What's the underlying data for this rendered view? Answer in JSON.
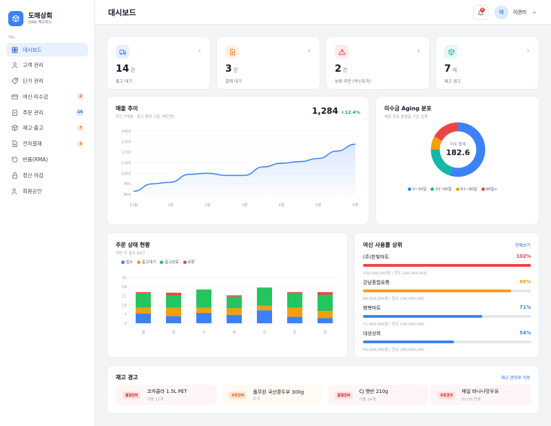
{
  "brand": {
    "name": "도매상회",
    "subtitle": "OMS 백오피스"
  },
  "sidebar": {
    "caption": "메뉴",
    "items": [
      {
        "label": "대시보드",
        "icon": "grid-icon",
        "active": true,
        "badge": ""
      },
      {
        "label": "고객 관리",
        "icon": "user-icon",
        "badge": ""
      },
      {
        "label": "단가 관리",
        "icon": "tag-icon",
        "badge": ""
      },
      {
        "label": "여신·미수금",
        "icon": "card-icon",
        "badge": "2",
        "badge_color": "red"
      },
      {
        "label": "주문 관리",
        "icon": "clipboard-icon",
        "badge": "14",
        "badge_color": "blue"
      },
      {
        "label": "재고·출고",
        "icon": "box-icon",
        "badge": "7",
        "badge_color": "orange"
      },
      {
        "label": "전자결재",
        "icon": "document-icon",
        "badge": "3",
        "badge_color": "orange"
      },
      {
        "label": "반품(RMA)",
        "icon": "return-icon",
        "badge": ""
      },
      {
        "label": "정산 마감",
        "icon": "lock-icon",
        "badge": ""
      },
      {
        "label": "회원승인",
        "icon": "user-check-icon",
        "badge": ""
      }
    ]
  },
  "header": {
    "title": "대시보드",
    "notification_count": "4",
    "avatar_initial": "이",
    "user_name": "이관리"
  },
  "kpis": [
    {
      "value": "14",
      "unit": "건",
      "label": "출고 대기",
      "color": "#3b82f6",
      "bg": "#e8f1fd",
      "icon": "truck-icon"
    },
    {
      "value": "3",
      "unit": "건",
      "label": "결재 대기",
      "color": "#f97316",
      "bg": "#fff1e6",
      "icon": "document-icon"
    },
    {
      "value": "2",
      "unit": "건",
      "label": "보류 주문 (여신초과)",
      "color": "#ef4444",
      "bg": "#fdecec",
      "icon": "warning-icon"
    },
    {
      "value": "7",
      "unit": "개",
      "label": "재고 경고",
      "color": "#14b8a6",
      "bg": "#e6f7f5",
      "icon": "box-icon"
    }
  ],
  "sales": {
    "title": "매출 추이",
    "subtitle": "최근 7개월 · 출고 확정 기준 (백만원)",
    "value": "1,284",
    "change": "+12.4%"
  },
  "aging": {
    "title": "미수금 Aging 분포",
    "subtitle": "채권 전표 발생일 기준 집계",
    "center_label": "미수 합계",
    "center_value": "182.6"
  },
  "orders": {
    "title": "주문 상태 현황",
    "subtitle": "이번 주 접수 84건"
  },
  "credit": {
    "title": "여신 사용률 상위",
    "link": "전체보기",
    "rows": [
      {
        "name": "(주)한빛마트",
        "pct": "102%",
        "fill": 1.0,
        "color": "#ef4444",
        "desc": "102,000,000원 / 한도 100,000,000"
      },
      {
        "name": "강남종합유통",
        "pct": "88%",
        "fill": 0.88,
        "color": "#f59e0b",
        "desc": "88,000,000원 / 한도 100,000,000"
      },
      {
        "name": "행복마트",
        "pct": "71%",
        "fill": 0.71,
        "color": "#3b82f6",
        "desc": "71,000,000원 / 한도 100,000,000"
      },
      {
        "name": "대성상회",
        "pct": "54%",
        "fill": 0.54,
        "color": "#3b82f6",
        "desc": "54,000,000원 / 한도 100,000,000"
      }
    ]
  },
  "stock": {
    "title": "재고 경고",
    "link": "재고 관리로 이동",
    "items": [
      {
        "tag": "품절임박",
        "name": "코카콜라 1.5L PET",
        "desc": "가용 12개",
        "tag_bg": "#fde2e2",
        "tag_color": "#dc2626",
        "bg": "#fef6f6"
      },
      {
        "tag": "유통임박",
        "name": "풀무원 국산콩두부 300g",
        "desc": "D-3",
        "tag_bg": "#fde9d3",
        "tag_color": "#ea580c",
        "bg": "#fffaf3"
      },
      {
        "tag": "품절임박",
        "name": "CJ 햇반 210g",
        "desc": "가용 24개",
        "tag_bg": "#fde2e2",
        "tag_color": "#dc2626",
        "bg": "#fef6f6"
      },
      {
        "tag": "유통경과",
        "name": "매일 바나나맛우유",
        "desc": "07.05 만료",
        "tag_bg": "#fde2e2",
        "tag_color": "#dc2626",
        "bg": "#fef6f6"
      }
    ]
  },
  "chart_data": [
    {
      "type": "area",
      "title": "매출 추이",
      "categories": [
        "12월",
        "1월",
        "2월",
        "3월",
        "4월",
        "5월",
        "6월"
      ],
      "x": [
        0,
        0.5,
        1,
        1.5,
        2,
        2.5,
        3,
        3.5,
        4,
        4.5,
        5,
        5.5,
        6
      ],
      "y": [
        830,
        900,
        915,
        990,
        1000,
        980,
        980,
        1060,
        1095,
        1110,
        1140,
        1210,
        1275
      ],
      "ylim": [
        800,
        1400
      ],
      "yticks": [
        800,
        900,
        1000,
        1100,
        1200,
        1300,
        1400
      ],
      "color": "#3b82f6",
      "grid": true
    },
    {
      "type": "pie",
      "title": "미수금 Aging 분포",
      "labels": [
        "0~30일",
        "31~60일",
        "61~90일",
        "90일+"
      ],
      "values": [
        55,
        20,
        8,
        17
      ],
      "colors": [
        "#3b82f6",
        "#14b8a6",
        "#f59e0b",
        "#ef4444"
      ],
      "legend": "bottom"
    },
    {
      "type": "bar",
      "title": "주문 상태 현황",
      "stacked": true,
      "categories": [
        "월",
        "화",
        "수",
        "목",
        "금",
        "토",
        "일"
      ],
      "series": [
        {
          "name": "접수",
          "values": [
            7.5,
            5.5,
            8,
            6.5,
            10,
            5,
            4
          ],
          "color": "#3b82f6"
        },
        {
          "name": "출고대기",
          "values": [
            4.5,
            6.5,
            4,
            5,
            3.5,
            7,
            5.5
          ],
          "color": "#f59e0b"
        },
        {
          "name": "출고완료",
          "values": [
            11,
            9.5,
            14,
            9,
            14,
            11,
            12.5
          ],
          "color": "#22c55e"
        },
        {
          "name": "보류",
          "values": [
            1,
            2,
            0,
            1,
            0,
            1,
            2
          ],
          "color": "#ef4444"
        }
      ],
      "ylim": [
        0,
        35
      ],
      "yticks": [
        0,
        7,
        14,
        21,
        28,
        35
      ],
      "legend": "top-left",
      "grid": true
    }
  ]
}
